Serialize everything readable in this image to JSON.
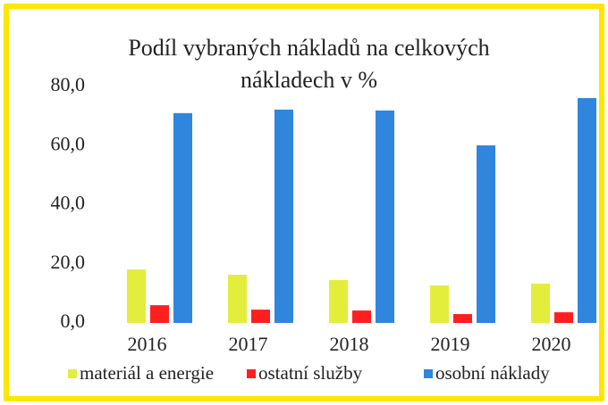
{
  "chart_data": {
    "type": "bar",
    "title": "Podíl vybraných nákladů na celkových nákladech v %",
    "categories": [
      "2016",
      "2017",
      "2018",
      "2019",
      "2020"
    ],
    "series": [
      {
        "name": "materiál a energie",
        "color": "#e3ee3c",
        "values": [
          18.1,
          16.3,
          14.5,
          12.7,
          13.3
        ]
      },
      {
        "name": "ostatní služby",
        "color": "#ff1f1f",
        "values": [
          6.0,
          4.5,
          4.2,
          3.0,
          3.6
        ]
      },
      {
        "name": "osobní náklady",
        "color": "#2f86dc",
        "values": [
          71.0,
          72.2,
          71.9,
          60.1,
          76.1
        ]
      }
    ],
    "ylim": [
      0,
      80
    ],
    "yticks": [
      {
        "value": 0,
        "label": "0,0"
      },
      {
        "value": 20,
        "label": "20,0"
      },
      {
        "value": 40,
        "label": "40,0"
      },
      {
        "value": 60,
        "label": "60,0"
      },
      {
        "value": 80,
        "label": "80,0"
      }
    ],
    "grid": false,
    "legend": "bottom"
  }
}
